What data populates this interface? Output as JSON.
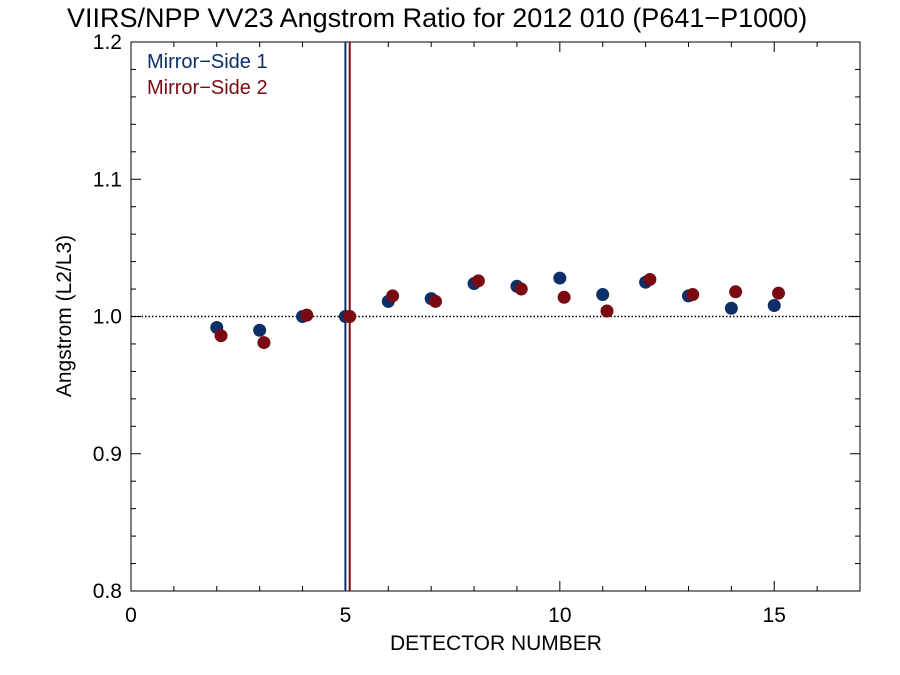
{
  "chart_data": {
    "type": "scatter",
    "title": "VIIRS/NPP VV23 Angstrom Ratio for 2012 010 (P641−P1000)",
    "xlabel": "DETECTOR NUMBER",
    "ylabel": "Angstrom (L2/L3)",
    "xlim": [
      0,
      17
    ],
    "ylim": [
      0.8,
      1.2
    ],
    "x_ticks": [
      "0",
      "5",
      "10",
      "15"
    ],
    "y_ticks": [
      "0.8",
      "0.9",
      "1.0",
      "1.1",
      "1.2"
    ],
    "reference_line": 1.0,
    "legend_position": "top-left",
    "series": [
      {
        "name": "Mirror−Side 1",
        "color": "#0b2f66",
        "marker_line_x": 5.0,
        "points": [
          [
            2.0,
            0.992
          ],
          [
            3.0,
            0.99
          ],
          [
            4.0,
            1.0
          ],
          [
            5.0,
            1.0
          ],
          [
            6.0,
            1.011
          ],
          [
            7.0,
            1.013
          ],
          [
            8.0,
            1.024
          ],
          [
            9.0,
            1.022
          ],
          [
            10.0,
            1.028
          ],
          [
            11.0,
            1.016
          ],
          [
            12.0,
            1.025
          ],
          [
            13.0,
            1.015
          ],
          [
            14.0,
            1.006
          ],
          [
            15.0,
            1.008
          ]
        ]
      },
      {
        "name": "Mirror−Side 2",
        "color": "#7a0a12",
        "marker_line_x": 5.1,
        "points": [
          [
            2.1,
            0.986
          ],
          [
            3.1,
            0.981
          ],
          [
            4.1,
            1.001
          ],
          [
            5.1,
            1.0
          ],
          [
            6.1,
            1.015
          ],
          [
            7.1,
            1.011
          ],
          [
            8.1,
            1.026
          ],
          [
            9.1,
            1.02
          ],
          [
            10.1,
            1.014
          ],
          [
            11.1,
            1.004
          ],
          [
            12.1,
            1.027
          ],
          [
            13.1,
            1.016
          ],
          [
            14.1,
            1.018
          ],
          [
            15.1,
            1.017
          ]
        ]
      }
    ]
  }
}
